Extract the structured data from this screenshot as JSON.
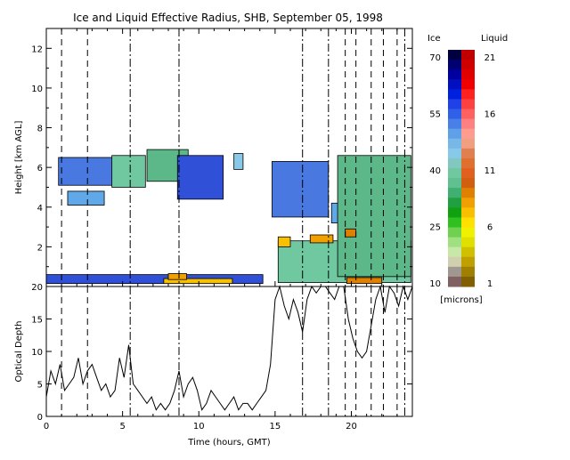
{
  "chart_data": [
    {
      "type": "heatmap",
      "title": "Ice and Liquid Effective Radius, SHB, September 05, 1998",
      "ylabel": "Height [km AGL]",
      "xlim": [
        0,
        24
      ],
      "ylim": [
        0,
        13
      ],
      "x_ticks": [
        "0",
        "5",
        "10",
        "15",
        "20"
      ],
      "y_ticks": [
        "2",
        "4",
        "6",
        "8",
        "10",
        "12"
      ],
      "clouds": [
        {
          "phase": "ice",
          "x0": 0.8,
          "x1": 4.4,
          "y0": 5.1,
          "y1": 6.5
        },
        {
          "phase": "ice",
          "x0": 1.4,
          "x1": 3.8,
          "y0": 4.1,
          "y1": 4.8
        },
        {
          "phase": "ice",
          "x0": 4.3,
          "x1": 6.5,
          "y0": 5.0,
          "y1": 6.6
        },
        {
          "phase": "ice",
          "x0": 6.6,
          "x1": 9.3,
          "y0": 5.3,
          "y1": 6.9
        },
        {
          "phase": "ice",
          "x0": 8.6,
          "x1": 11.6,
          "y0": 4.4,
          "y1": 6.6
        },
        {
          "phase": "ice",
          "x0": 12.3,
          "x1": 12.9,
          "y0": 5.9,
          "y1": 6.7
        },
        {
          "phase": "ice",
          "x0": 14.8,
          "x1": 18.5,
          "y0": 3.5,
          "y1": 6.3
        },
        {
          "phase": "ice",
          "x0": 18.7,
          "x1": 19.4,
          "y0": 3.2,
          "y1": 4.2
        },
        {
          "phase": "ice",
          "x0": 15.2,
          "x1": 23.9,
          "y0": 0.2,
          "y1": 2.3
        },
        {
          "phase": "ice",
          "x0": 19.1,
          "x1": 23.9,
          "y0": 0.5,
          "y1": 6.6
        },
        {
          "phase": "ice",
          "x0": 0.0,
          "x1": 14.2,
          "y0": 0.15,
          "y1": 0.6
        },
        {
          "phase": "liquid",
          "x0": 15.2,
          "x1": 16.0,
          "y0": 2.0,
          "y1": 2.5
        },
        {
          "phase": "liquid",
          "x0": 17.3,
          "x1": 18.8,
          "y0": 2.2,
          "y1": 2.6
        },
        {
          "phase": "liquid",
          "x0": 19.6,
          "x1": 20.3,
          "y0": 2.5,
          "y1": 2.9
        },
        {
          "phase": "liquid",
          "x0": 7.7,
          "x1": 12.2,
          "y0": 0.15,
          "y1": 0.4
        },
        {
          "phase": "liquid",
          "x0": 8.0,
          "x1": 9.2,
          "y0": 0.35,
          "y1": 0.65
        },
        {
          "phase": "liquid",
          "x0": 19.7,
          "x1": 22.0,
          "y0": 0.15,
          "y1": 0.45
        }
      ],
      "colorbar": {
        "ice_label": "Ice",
        "liquid_label": "Liquid",
        "ice_ticks": [
          "70",
          "55",
          "40",
          "25",
          "10"
        ],
        "liquid_ticks": [
          "21",
          "16",
          "11",
          "6",
          "1"
        ],
        "unit": "[microns]",
        "ice_colors": [
          "#000040",
          "#000070",
          "#0000a0",
          "#0010c0",
          "#0020e0",
          "#2040e8",
          "#3060e8",
          "#4880e8",
          "#60a0e8",
          "#78b8e8",
          "#88c8e8",
          "#80c8c0",
          "#70c8a0",
          "#60c090",
          "#40b070",
          "#20a040",
          "#10a010",
          "#30c020",
          "#70d050",
          "#a0e080",
          "#c8e8a8",
          "#d0d0b0",
          "#a09890",
          "#806060"
        ],
        "liquid_colors": [
          "#c00000",
          "#d00000",
          "#e00000",
          "#f00000",
          "#ff2020",
          "#ff4040",
          "#ff6060",
          "#ff8080",
          "#ff9c90",
          "#f0a080",
          "#e08050",
          "#e07030",
          "#e06020",
          "#d06010",
          "#e08000",
          "#f0a000",
          "#f8c000",
          "#ffe000",
          "#f0f000",
          "#e0e000",
          "#d0c000",
          "#c0a000",
          "#a08000",
          "#806000"
        ]
      },
      "vlines": [
        {
          "x": 1.0,
          "style": "dashed"
        },
        {
          "x": 2.7,
          "style": "dashed"
        },
        {
          "x": 5.5,
          "style": "dashdot"
        },
        {
          "x": 8.7,
          "style": "dashdot"
        },
        {
          "x": 16.8,
          "style": "dashdot"
        },
        {
          "x": 18.5,
          "style": "dashdot"
        },
        {
          "x": 19.6,
          "style": "dashed"
        },
        {
          "x": 20.3,
          "style": "dashed"
        },
        {
          "x": 21.3,
          "style": "dashed"
        },
        {
          "x": 22.1,
          "style": "dashed"
        },
        {
          "x": 23.0,
          "style": "dashed"
        },
        {
          "x": 23.5,
          "style": "dashdot"
        }
      ]
    },
    {
      "type": "line",
      "ylabel": "Optical Depth",
      "xlabel": "Time (hours, GMT)",
      "xlim": [
        0,
        24
      ],
      "ylim": [
        0,
        20
      ],
      "x_ticks": [
        "0",
        "5",
        "10",
        "15",
        "20"
      ],
      "y_ticks": [
        "0",
        "5",
        "10",
        "15",
        "20"
      ],
      "series": [
        {
          "x": [
            0,
            0.3,
            0.6,
            0.9,
            1.2,
            1.5,
            1.8,
            2.1,
            2.4,
            2.7,
            3.0,
            3.3,
            3.6,
            3.9,
            4.2,
            4.5,
            4.8,
            5.1,
            5.4,
            5.7,
            6.0,
            6.3,
            6.6,
            6.9,
            7.2,
            7.5,
            7.8,
            8.1,
            8.4,
            8.7,
            9.0,
            9.3,
            9.6,
            9.9,
            10.2,
            10.5,
            10.8,
            11.1,
            11.4,
            11.7,
            12.0,
            12.3,
            12.6,
            12.9,
            13.2,
            13.5,
            13.8,
            14.1,
            14.4,
            14.7,
            15.0,
            15.3,
            15.6,
            15.9,
            16.2,
            16.5,
            16.8,
            17.1,
            17.4,
            17.7,
            18.0,
            18.3,
            18.6,
            18.9,
            19.2,
            19.5,
            19.8,
            20.1,
            20.4,
            20.7,
            21.0,
            21.3,
            21.6,
            21.9,
            22.2,
            22.5,
            22.8,
            23.1,
            23.4,
            23.7,
            24.0
          ],
          "y": [
            3,
            7,
            5,
            8,
            4,
            5,
            6,
            9,
            5,
            7,
            8,
            6,
            4,
            5,
            3,
            4,
            9,
            6,
            11,
            5,
            4,
            3,
            2,
            3,
            1,
            2,
            1,
            2,
            4,
            7,
            3,
            5,
            6,
            4,
            1,
            2,
            4,
            3,
            2,
            1,
            2,
            3,
            1,
            2,
            2,
            1,
            2,
            3,
            4,
            8,
            18,
            20,
            17,
            15,
            18,
            16,
            13,
            18,
            20,
            19,
            20,
            20,
            19,
            18,
            20,
            20,
            15,
            12,
            10,
            9,
            10,
            14,
            18,
            20,
            16,
            20,
            19,
            17,
            20,
            18,
            20
          ]
        }
      ]
    }
  ]
}
